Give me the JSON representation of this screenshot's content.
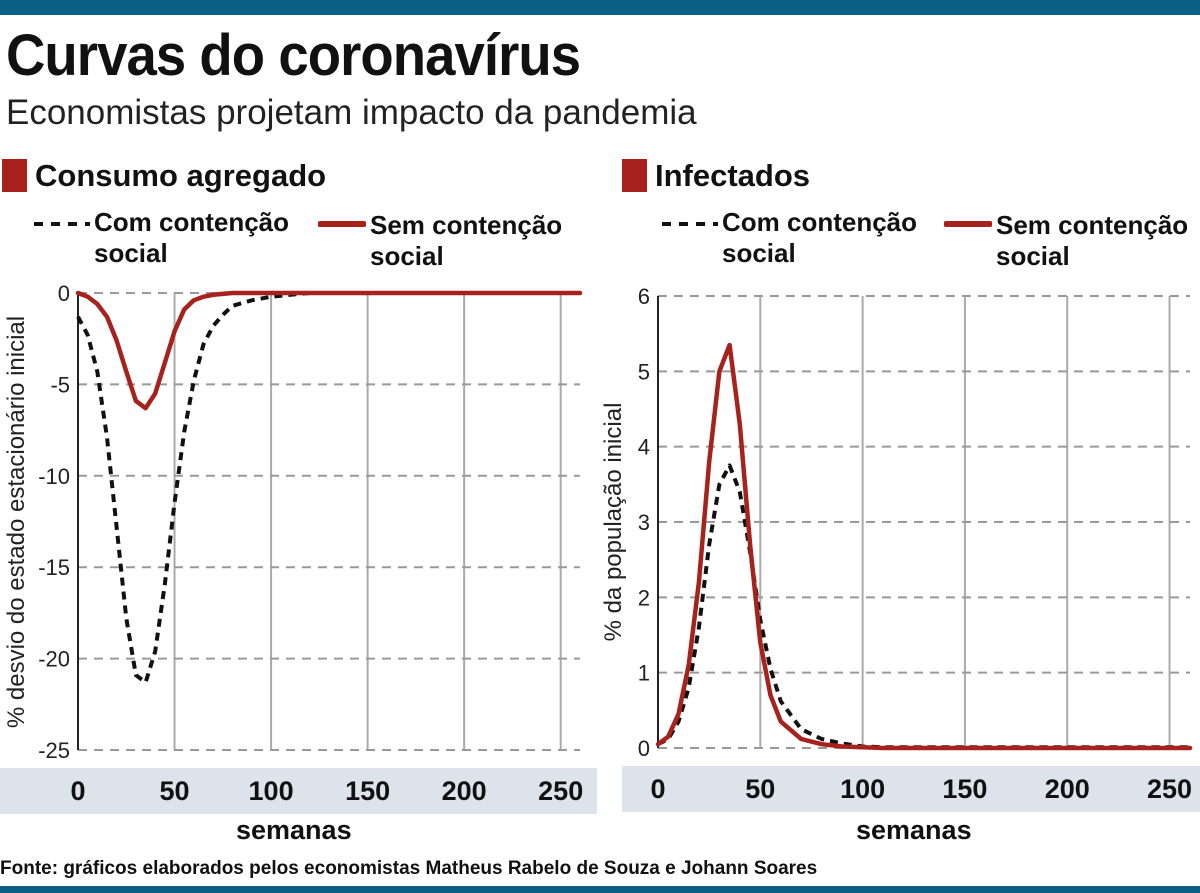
{
  "header": {
    "title": "Curvas do coronavírus",
    "subtitle": "Economistas projetam impacto da pandemia",
    "source": "Fonte: gráficos elaborados pelos economistas Matheus Rabelo de Souza e Johann Soares"
  },
  "colors": {
    "accent_bar": "#0b5f86",
    "red": "#a8221d",
    "dashed": "#111111",
    "axis_band": "#dde3ea",
    "grid": "#999999"
  },
  "chart_data": [
    {
      "type": "line",
      "title": "Consumo agregado",
      "xlabel": "semanas",
      "ylabel": "% desvio do estado estacionário inicial",
      "xlim": [
        0,
        260
      ],
      "ylim": [
        -25,
        0
      ],
      "xticks": [
        0,
        50,
        100,
        150,
        200,
        250
      ],
      "xtick_labels": [
        "0",
        "50",
        "100",
        "150",
        "200",
        "250"
      ],
      "yticks": [
        0,
        -5,
        -10,
        -15,
        -20,
        -25
      ],
      "ytick_labels": [
        "0",
        "-5",
        "-10",
        "-15",
        "-20",
        "-25"
      ],
      "grid": true,
      "series": [
        {
          "name": "Com contenção social",
          "style": "dashed",
          "color": "#111111",
          "x": [
            0,
            5,
            10,
            15,
            20,
            25,
            30,
            35,
            40,
            45,
            50,
            55,
            60,
            65,
            70,
            75,
            80,
            90,
            100,
            110,
            120,
            150,
            200,
            260
          ],
          "y": [
            -1.3,
            -2.3,
            -4.3,
            -7.9,
            -12.8,
            -17.8,
            -20.9,
            -21.3,
            -19.6,
            -15.9,
            -11.5,
            -7.6,
            -4.8,
            -2.8,
            -1.8,
            -1.2,
            -0.7,
            -0.4,
            -0.2,
            -0.1,
            0,
            0,
            0,
            0
          ]
        },
        {
          "name": "Sem contenção social",
          "style": "solid",
          "color": "#a8221d",
          "x": [
            0,
            5,
            10,
            15,
            20,
            25,
            30,
            35,
            40,
            45,
            50,
            55,
            60,
            65,
            70,
            80,
            100,
            150,
            200,
            260
          ],
          "y": [
            0,
            -0.2,
            -0.6,
            -1.3,
            -2.6,
            -4.3,
            -5.9,
            -6.3,
            -5.5,
            -3.8,
            -2.1,
            -0.9,
            -0.4,
            -0.2,
            -0.1,
            0,
            0,
            0,
            0,
            0
          ]
        }
      ]
    },
    {
      "type": "line",
      "title": "Infectados",
      "xlabel": "semanas",
      "ylabel": "% da população inicial",
      "xlim": [
        0,
        260
      ],
      "ylim": [
        0,
        6
      ],
      "xticks": [
        0,
        50,
        100,
        150,
        200,
        250
      ],
      "xtick_labels": [
        "0",
        "50",
        "100",
        "150",
        "200",
        "250"
      ],
      "yticks": [
        0,
        1,
        2,
        3,
        4,
        5,
        6
      ],
      "ytick_labels": [
        "0",
        "1",
        "2",
        "3",
        "4",
        "5",
        "6"
      ],
      "grid": true,
      "series": [
        {
          "name": "Com contenção social",
          "style": "dashed",
          "color": "#111111",
          "x": [
            0,
            5,
            10,
            15,
            20,
            25,
            30,
            35,
            40,
            45,
            50,
            55,
            60,
            70,
            80,
            90,
            100,
            110,
            150,
            200,
            260
          ],
          "y": [
            0.05,
            0.12,
            0.35,
            0.8,
            1.6,
            2.7,
            3.5,
            3.75,
            3.4,
            2.6,
            1.7,
            1.05,
            0.62,
            0.25,
            0.12,
            0.06,
            0.02,
            0.01,
            0.01,
            0.01,
            0.01
          ]
        },
        {
          "name": "Sem contenção social",
          "style": "solid",
          "color": "#a8221d",
          "x": [
            0,
            5,
            10,
            15,
            20,
            25,
            30,
            35,
            40,
            45,
            50,
            55,
            60,
            70,
            80,
            90,
            100,
            110,
            150,
            200,
            260
          ],
          "y": [
            0.05,
            0.15,
            0.45,
            1.1,
            2.2,
            3.8,
            5.0,
            5.35,
            4.3,
            2.7,
            1.4,
            0.7,
            0.35,
            0.12,
            0.05,
            0.02,
            0.01,
            0,
            0,
            0,
            0
          ]
        }
      ]
    }
  ]
}
